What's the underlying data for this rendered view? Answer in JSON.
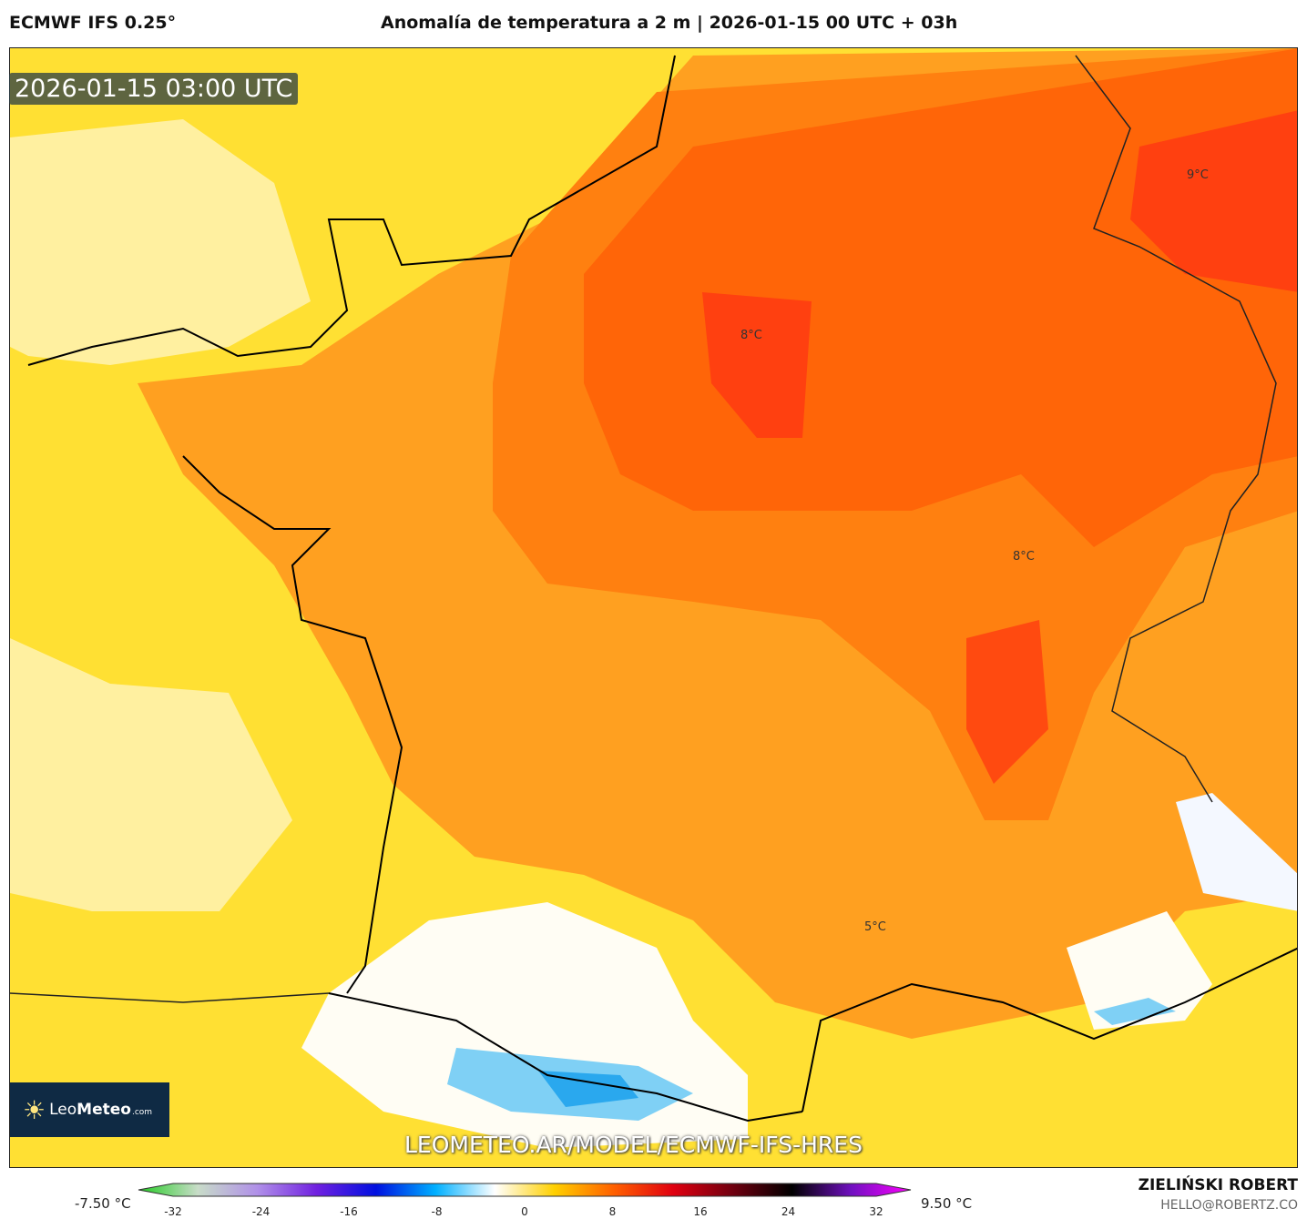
{
  "header": {
    "model": "ECMWF IFS 0.25°",
    "title": "Anomalía de temperatura a 2 m | 2026-01-15 00 UTC + 03h"
  },
  "map": {
    "valid_time": "2026-01-15 03:00 UTC",
    "watermark": "LEOMETEO.AR/MODEL/ECMWF-IFS-HRES",
    "logo": {
      "text_light": "Leo",
      "text_bold": "Meteo",
      "suffix": ".com"
    },
    "contour_labels": [
      "9°C",
      "8°C",
      "8°C",
      "5°C"
    ]
  },
  "colorbar": {
    "min_label": "-7.50 °C",
    "max_label": "9.50 °C",
    "ticks": [
      "-32",
      "-24",
      "-16",
      "-8",
      "0",
      "8",
      "16",
      "24",
      "32"
    ],
    "colors": [
      "#22cc22",
      "#c8dcc8",
      "#b090e8",
      "#7020e0",
      "#0010e0",
      "#00b0ff",
      "#ffffff",
      "#ffd000",
      "#ff6000",
      "#e00010",
      "#700010",
      "#000000",
      "#7010c0",
      "#ff00ff"
    ]
  },
  "credits": {
    "author": "ZIELIŃSKI ROBERT",
    "email": "HELLO@ROBERTZ.CO"
  }
}
